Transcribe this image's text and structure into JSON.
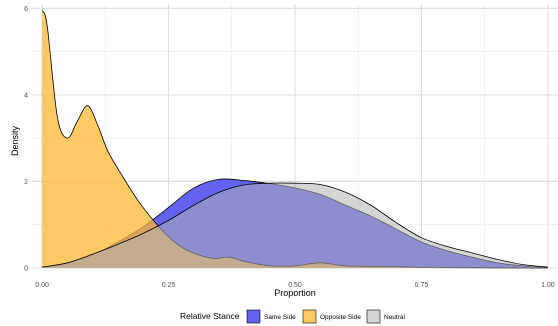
{
  "chart_data": {
    "type": "area",
    "title": "",
    "xlabel": "Proportion",
    "ylabel": "Density",
    "xlim": [
      -0.02,
      1.02
    ],
    "ylim": [
      0,
      6.1
    ],
    "x_ticks": [
      0,
      0.25,
      0.5,
      0.75,
      1
    ],
    "x_tick_labels": [
      "0.00",
      "0.25",
      "0.50",
      "0.75",
      "1.00"
    ],
    "y_ticks": [
      0,
      2,
      4,
      6
    ],
    "y_tick_labels": [
      "0",
      "2",
      "4",
      "6"
    ],
    "grid": true,
    "legend": {
      "title": "Relative Stance",
      "position": "bottom",
      "entries": [
        "Same Side",
        "Opposite Side",
        "Neutral"
      ]
    },
    "series": [
      {
        "name": "Same Side",
        "color": "#5252ee",
        "opacity": 0.9,
        "points": [
          [
            0,
            0.02
          ],
          [
            0.05,
            0.1
          ],
          [
            0.1,
            0.3
          ],
          [
            0.15,
            0.6
          ],
          [
            0.2,
            0.95
          ],
          [
            0.25,
            1.4
          ],
          [
            0.3,
            1.85
          ],
          [
            0.35,
            2.05
          ],
          [
            0.4,
            2.02
          ],
          [
            0.45,
            1.95
          ],
          [
            0.5,
            1.85
          ],
          [
            0.55,
            1.7
          ],
          [
            0.6,
            1.45
          ],
          [
            0.65,
            1.2
          ],
          [
            0.7,
            0.9
          ],
          [
            0.75,
            0.6
          ],
          [
            0.8,
            0.4
          ],
          [
            0.85,
            0.25
          ],
          [
            0.9,
            0.12
          ],
          [
            0.95,
            0.05
          ],
          [
            1,
            0.01
          ]
        ]
      },
      {
        "name": "Opposite Side",
        "color": "#ffb833",
        "opacity": 0.75,
        "points": [
          [
            0,
            5.95
          ],
          [
            0.01,
            5.6
          ],
          [
            0.03,
            3.5
          ],
          [
            0.05,
            3.0
          ],
          [
            0.07,
            3.4
          ],
          [
            0.09,
            3.75
          ],
          [
            0.11,
            3.3
          ],
          [
            0.13,
            2.7
          ],
          [
            0.16,
            2.1
          ],
          [
            0.19,
            1.55
          ],
          [
            0.22,
            1.1
          ],
          [
            0.25,
            0.72
          ],
          [
            0.28,
            0.45
          ],
          [
            0.31,
            0.3
          ],
          [
            0.34,
            0.22
          ],
          [
            0.37,
            0.25
          ],
          [
            0.4,
            0.15
          ],
          [
            0.45,
            0.05
          ],
          [
            0.5,
            0.05
          ],
          [
            0.55,
            0.12
          ],
          [
            0.6,
            0.05
          ],
          [
            0.7,
            0.03
          ],
          [
            0.8,
            0.01
          ],
          [
            1,
            0
          ]
        ]
      },
      {
        "name": "Neutral",
        "color": "#b3b3b3",
        "opacity": 0.55,
        "points": [
          [
            0,
            0.02
          ],
          [
            0.05,
            0.12
          ],
          [
            0.1,
            0.32
          ],
          [
            0.15,
            0.55
          ],
          [
            0.2,
            0.8
          ],
          [
            0.25,
            1.1
          ],
          [
            0.3,
            1.45
          ],
          [
            0.35,
            1.75
          ],
          [
            0.4,
            1.92
          ],
          [
            0.45,
            1.96
          ],
          [
            0.5,
            1.96
          ],
          [
            0.55,
            1.93
          ],
          [
            0.6,
            1.75
          ],
          [
            0.65,
            1.45
          ],
          [
            0.7,
            1.05
          ],
          [
            0.75,
            0.7
          ],
          [
            0.8,
            0.5
          ],
          [
            0.85,
            0.35
          ],
          [
            0.9,
            0.2
          ],
          [
            0.95,
            0.08
          ],
          [
            1,
            0.02
          ]
        ]
      }
    ]
  }
}
